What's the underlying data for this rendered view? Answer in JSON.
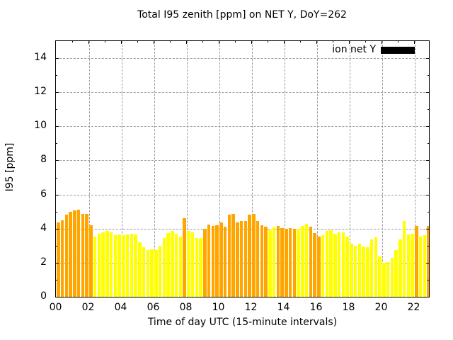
{
  "title": "Total I95 zenith [ppm] on NET Y, DoY=262",
  "legend": {
    "label": "ion net Y",
    "swatch_color": "#000000"
  },
  "axes": {
    "x_label": "Time of day UTC (15-minute intervals)",
    "y_label": "I95 [ppm]",
    "x_tick_labels": [
      "00",
      "02",
      "04",
      "06",
      "08",
      "10",
      "12",
      "14",
      "16",
      "18",
      "20",
      "22"
    ],
    "y_tick_labels": [
      "0",
      "2",
      "4",
      "6",
      "8",
      "10",
      "12",
      "14"
    ]
  },
  "colors": {
    "bar_orange": "#ffa500",
    "bar_yellow": "#ffff00",
    "grid": "#9a9a9a",
    "frame": "#000000",
    "background": "#ffffff"
  },
  "chart_data": {
    "type": "bar",
    "title": "Total I95 zenith [ppm] on NET Y, DoY=262",
    "xlabel": "Time of day UTC (15-minute intervals)",
    "ylabel": "I95 [ppm]",
    "series_name": "ion net Y",
    "interval_minutes": 15,
    "x_range_hours": [
      0,
      23
    ],
    "ylim": [
      0,
      15
    ],
    "y_major_ticks": [
      0,
      2,
      4,
      6,
      8,
      10,
      12,
      14
    ],
    "grid": "dashed, both axes, every 2 units",
    "legend_position": "top-right inside",
    "color_key": {
      "o": "bar_orange",
      "y": "bar_yellow"
    },
    "bar_color_flags": "oooooooooyyyyyyyyyyyyyyyyyyyyyyoyyyyoooooooooooooooonyooooonyyooonyyyyyyyyyyyyyyyyyyyyyyoyyoyyo",
    "times": [
      "00:00",
      "00:15",
      "00:30",
      "00:45",
      "01:00",
      "01:15",
      "01:30",
      "01:45",
      "02:00",
      "02:15",
      "02:30",
      "02:45",
      "03:00",
      "03:15",
      "03:30",
      "03:45",
      "04:00",
      "04:15",
      "04:30",
      "04:45",
      "05:00",
      "05:15",
      "05:30",
      "05:45",
      "06:00",
      "06:15",
      "06:30",
      "06:45",
      "07:00",
      "07:15",
      "07:30",
      "07:45",
      "08:00",
      "08:15",
      "08:30",
      "08:45",
      "09:00",
      "09:15",
      "09:30",
      "09:45",
      "10:00",
      "10:15",
      "10:30",
      "10:45",
      "11:00",
      "11:15",
      "11:30",
      "11:45",
      "12:00",
      "12:15",
      "12:30",
      "12:45",
      "13:00",
      "13:15",
      "13:30",
      "13:45",
      "14:00",
      "14:15",
      "14:30",
      "14:45",
      "15:00",
      "15:15",
      "15:30",
      "15:45",
      "16:00",
      "16:15",
      "16:30",
      "16:45",
      "17:00",
      "17:15",
      "17:30",
      "17:45",
      "18:00",
      "18:15",
      "18:30",
      "18:45",
      "19:00",
      "19:15",
      "19:30",
      "19:45",
      "20:00",
      "20:15",
      "20:30",
      "20:45",
      "21:00",
      "21:15",
      "21:30",
      "21:45",
      "22:00",
      "22:15",
      "22:30",
      "22:45"
    ],
    "values": [
      4.35,
      4.5,
      4.8,
      5.0,
      5.05,
      5.1,
      4.85,
      4.85,
      4.2,
      3.55,
      3.7,
      3.8,
      3.85,
      3.8,
      3.6,
      3.65,
      3.6,
      3.65,
      3.7,
      3.65,
      3.2,
      2.9,
      2.75,
      2.8,
      2.75,
      3.0,
      3.45,
      3.75,
      3.85,
      3.7,
      3.55,
      4.6,
      3.85,
      3.8,
      3.45,
      3.45,
      4.0,
      4.25,
      4.15,
      4.2,
      4.35,
      4.1,
      4.8,
      4.85,
      4.35,
      4.45,
      4.45,
      4.8,
      4.85,
      4.45,
      4.2,
      4.1,
      3.9,
      4.1,
      4.15,
      4.05,
      4.0,
      4.05,
      4.0,
      4.0,
      4.15,
      4.3,
      4.1,
      3.75,
      3.55,
      3.6,
      3.85,
      3.9,
      3.7,
      3.8,
      3.8,
      3.55,
      3.1,
      3.0,
      3.1,
      2.95,
      2.9,
      3.35,
      3.5,
      2.35,
      2.0,
      2.05,
      2.3,
      2.75,
      3.35,
      4.45,
      3.65,
      3.7,
      4.15,
      3.55,
      3.6,
      4.15
    ]
  }
}
